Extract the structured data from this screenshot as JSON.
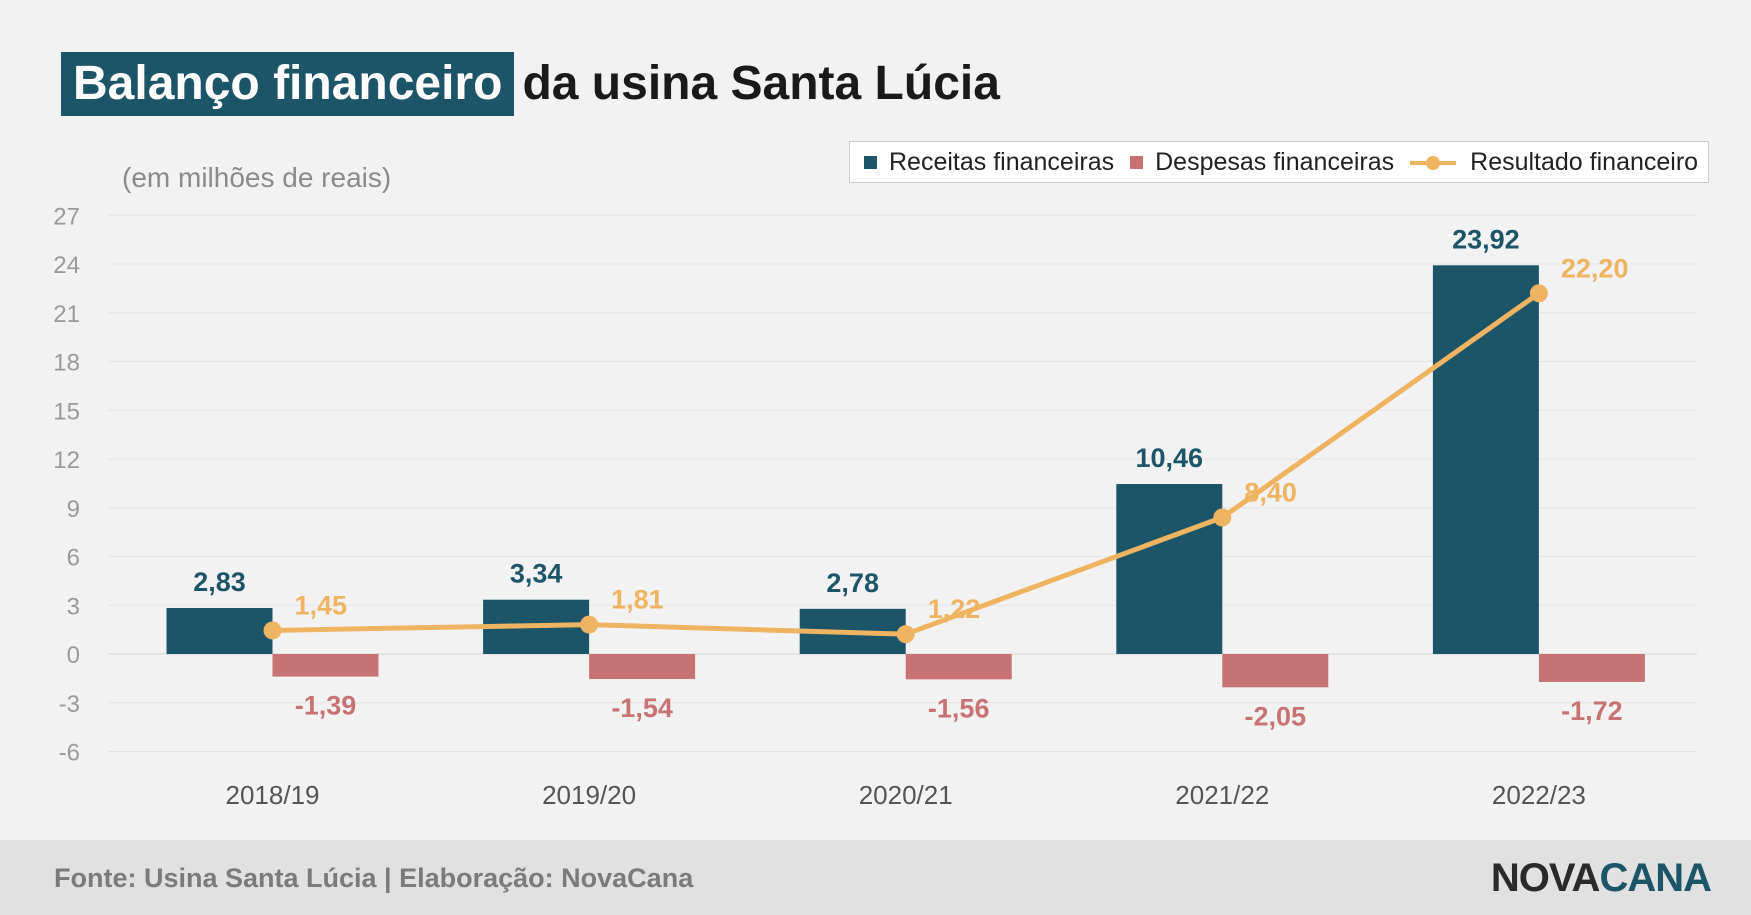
{
  "title": {
    "highlight": "Balanço financeiro",
    "rest": "da usina Santa Lúcia"
  },
  "unit_label": "(em milhões de reais)",
  "legend": {
    "items": [
      {
        "label": "Receitas financeiras",
        "color": "#1d5568",
        "kind": "square"
      },
      {
        "label": "Despesas financeiras",
        "color": "#c87373",
        "kind": "square"
      },
      {
        "label": "Resultado financeiro",
        "color": "#efb462",
        "kind": "line"
      }
    ]
  },
  "chart_data": {
    "type": "bar",
    "categories": [
      "2018/19",
      "2019/20",
      "2020/21",
      "2021/22",
      "2022/23"
    ],
    "series": [
      {
        "name": "Receitas financeiras",
        "type": "bar",
        "color": "#1d5568",
        "values": [
          2.83,
          3.34,
          2.78,
          10.46,
          23.92
        ],
        "labels": [
          "2,83",
          "3,34",
          "2,78",
          "10,46",
          "23,92"
        ]
      },
      {
        "name": "Despesas financeiras",
        "type": "bar",
        "color": "#c87373",
        "values": [
          -1.39,
          -1.54,
          -1.56,
          -2.05,
          -1.72
        ],
        "labels": [
          "-1,39",
          "-1,54",
          "-1,56",
          "-2,05",
          "-1,72"
        ]
      },
      {
        "name": "Resultado financeiro",
        "type": "line",
        "color": "#efb462",
        "values": [
          1.45,
          1.81,
          1.22,
          8.4,
          22.2
        ],
        "labels": [
          "1,45",
          "1,81",
          "1,22",
          "8,40",
          "22,20"
        ]
      }
    ],
    "yticks": [
      27,
      24,
      21,
      18,
      15,
      12,
      9,
      6,
      3,
      0,
      -3,
      -6
    ],
    "ylim": [
      -6,
      27
    ],
    "grid": true,
    "legend_position": "top-right"
  },
  "footer": {
    "source": "Fonte: Usina Santa Lúcia | Elaboração: NovaCana",
    "logo_part1": "NOVA",
    "logo_part2": "CANA"
  }
}
